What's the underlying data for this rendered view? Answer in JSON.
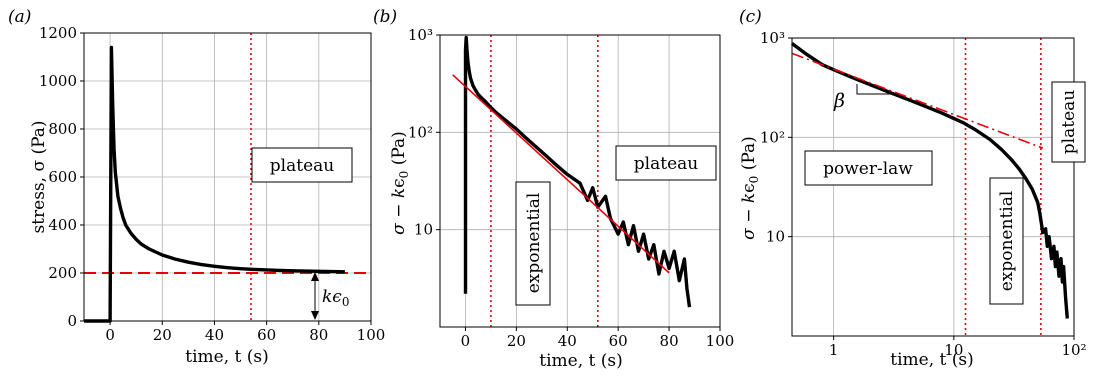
{
  "figure": {
    "colors": {
      "data": "#000000",
      "fit": "#e8000b",
      "marker": "#e8000b",
      "grid": "#b0b0b0"
    }
  },
  "chart_data": [
    {
      "panel_label": "(a)",
      "type": "line",
      "xlabel": "time, t (s)",
      "ylabel": "stress, σ (Pa)",
      "xlim": [
        -10,
        100
      ],
      "ylim": [
        0,
        1200
      ],
      "yscale": "linear",
      "grid": true,
      "xticks": [
        0,
        20,
        40,
        60,
        80,
        100
      ],
      "yticks": [
        0,
        200,
        400,
        600,
        800,
        1000,
        1200
      ],
      "series": [
        {
          "role": "data",
          "x": [
            -10,
            0,
            0.5,
            1,
            1.5,
            2,
            3,
            4,
            5,
            6,
            8,
            10,
            12,
            15,
            20,
            25,
            30,
            35,
            40,
            45,
            50,
            55,
            60,
            65,
            70,
            75,
            80,
            85,
            90
          ],
          "y": [
            0,
            0,
            1140,
            900,
            720,
            620,
            520,
            470,
            430,
            400,
            365,
            340,
            320,
            300,
            275,
            258,
            245,
            235,
            228,
            222,
            218,
            215,
            213,
            211,
            209,
            208,
            207,
            206,
            205
          ]
        }
      ],
      "hlines": [
        {
          "y": 200,
          "role": "k ε0"
        }
      ],
      "vlines": [
        54
      ],
      "annotations": [
        {
          "text": "plateau",
          "x": 76,
          "y": 640
        },
        {
          "text": "kϵ0",
          "x": 86,
          "y": 103
        }
      ]
    },
    {
      "panel_label": "(b)",
      "type": "line",
      "xlabel": "time, t (s)",
      "ylabel": "σ − kϵ0 (Pa)",
      "xlim": [
        -10,
        100
      ],
      "ylim": [
        1,
        1000
      ],
      "yscale": "log",
      "grid": true,
      "xticks": [
        0,
        20,
        40,
        60,
        80,
        100
      ],
      "yticks": [
        10,
        100,
        1000
      ],
      "ytick_labels": [
        "10",
        "10²",
        "10³"
      ],
      "series": [
        {
          "role": "data",
          "x": [
            0,
            0,
            0.3,
            0.6,
            1,
            1.5,
            2,
            3,
            4,
            5,
            6,
            8,
            10,
            12,
            15,
            20,
            25,
            30,
            35,
            40,
            45,
            48,
            50,
            52,
            55,
            57,
            60,
            62,
            64,
            66,
            68,
            70,
            72,
            74,
            76,
            78,
            80,
            82,
            84,
            86,
            87,
            88
          ],
          "y": [
            2.2,
            700,
            940,
            700,
            520,
            420,
            360,
            300,
            270,
            245,
            230,
            205,
            180,
            160,
            138,
            108,
            82,
            63,
            48,
            37,
            30,
            20,
            27,
            17,
            22,
            13,
            9,
            12,
            7,
            11,
            6,
            9,
            5,
            7,
            3.5,
            6,
            4,
            6,
            3,
            5,
            2.5,
            1.6
          ]
        },
        {
          "role": "fit",
          "x": [
            -5,
            80
          ],
          "y": [
            390,
            3.6
          ]
        }
      ],
      "vlines": [
        10,
        52
      ],
      "annotations": [
        {
          "text": "exponential",
          "x": 17,
          "y": 6.5,
          "rotation": -90
        },
        {
          "text": "plateau",
          "x": 80,
          "y": 58
        }
      ]
    },
    {
      "panel_label": "(c)",
      "type": "line",
      "xlabel": "time, t (s)",
      "ylabel": "σ − kϵ0 (Pa)",
      "xlim": [
        0.45,
        100
      ],
      "ylim": [
        1,
        1000
      ],
      "xscale": "log",
      "yscale": "log",
      "grid": true,
      "xticks": [
        1,
        10,
        100
      ],
      "xtick_labels": [
        "1",
        "10",
        "10²"
      ],
      "yticks": [
        10,
        100,
        1000
      ],
      "ytick_labels": [
        "10",
        "10²",
        "10³"
      ],
      "series": [
        {
          "role": "data",
          "x": [
            0.45,
            0.6,
            0.8,
            1,
            1.5,
            2,
            3,
            5,
            8,
            12,
            15,
            20,
            25,
            30,
            35,
            40,
            45,
            50,
            52,
            55,
            58,
            60,
            62,
            65,
            68,
            70,
            72,
            75,
            78,
            80,
            82,
            85,
            88
          ],
          "y": [
            880,
            680,
            540,
            480,
            390,
            340,
            280,
            220,
            175,
            140,
            120,
            95,
            75,
            60,
            48,
            38,
            30,
            22,
            17,
            11,
            12,
            8,
            10,
            6,
            8,
            5,
            7,
            4,
            6,
            3.5,
            5,
            2.5,
            1.5
          ]
        },
        {
          "role": "fit",
          "x": [
            0.45,
            55
          ],
          "y": [
            700,
            78
          ]
        }
      ],
      "vlines": [
        12.5,
        53
      ],
      "annotations": [
        {
          "text": "β",
          "x": 1.35,
          "y": 330
        },
        {
          "text": "power-law",
          "x": 2.2,
          "y": 85
        },
        {
          "text": "exponential",
          "x": 25,
          "y": 5.5,
          "rotation": -90
        },
        {
          "text": "plateau",
          "x": 71,
          "y": 140,
          "rotation": -90
        }
      ]
    }
  ]
}
